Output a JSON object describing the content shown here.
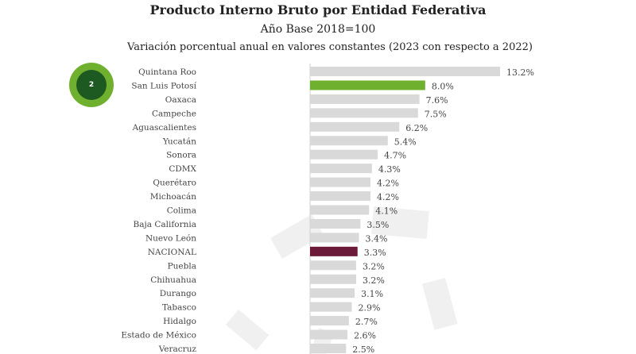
{
  "badge": {
    "number": "2",
    "colors": {
      "outer": "#6fb12e",
      "inner": "#1d5a22"
    }
  },
  "chart_data": {
    "type": "bar",
    "orientation": "horizontal",
    "title": "Producto Interno Bruto por Entidad Federativa",
    "subtitle": "Año Base 2018=100",
    "subtitle2": "Variación porcentual anual en valores constantes (2023 con respecto a 2022)",
    "categories": [
      "Quintana Roo",
      "San Luis Potosí",
      "Oaxaca",
      "Campeche",
      "Aguascalientes",
      "Yucatán",
      "Sonora",
      "CDMX",
      "Querétaro",
      "Michoacán",
      "Colima",
      "Baja California",
      "Nuevo León",
      "NACIONAL",
      "Puebla",
      "Chihuahua",
      "Durango",
      "Tabasco",
      "Hidalgo",
      "Estado de México",
      "Veracruz"
    ],
    "values": [
      13.2,
      8.0,
      7.6,
      7.5,
      6.2,
      5.4,
      4.7,
      4.3,
      4.2,
      4.2,
      4.1,
      3.5,
      3.4,
      3.3,
      3.2,
      3.2,
      3.1,
      2.9,
      2.7,
      2.6,
      2.5
    ],
    "labels": [
      "13.2%",
      "8.0%",
      "7.6%",
      "7.5%",
      "6.2%",
      "5.4%",
      "4.7%",
      "4.3%",
      "4.2%",
      "4.2%",
      "4.1%",
      "3.5%",
      "3.4%",
      "3.3%",
      "3.2%",
      "3.2%",
      "3.1%",
      "2.9%",
      "2.7%",
      "2.6%",
      "2.5%"
    ],
    "colors": {
      "default": "#d9d9d9",
      "highlight": "#6fb12e",
      "national": "#6b1a3a"
    },
    "highlight": "San Luis Potosí",
    "national": "NACIONAL"
  }
}
